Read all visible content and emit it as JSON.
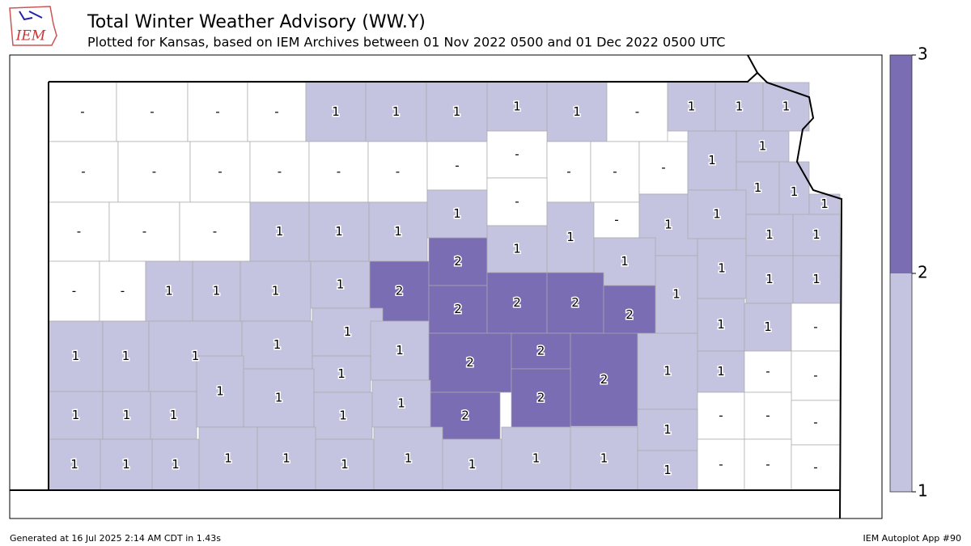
{
  "header": {
    "logo": "IEM",
    "title": "Total Winter Weather Advisory (WW.Y)",
    "subtitle": "Plotted for Kansas, based on IEM Archives  between 01 Nov 2022 0500 and 01 Dec 2022 0500 UTC"
  },
  "colorbar": {
    "levels": [
      1,
      2,
      3
    ],
    "colors": [
      "#c4c4e0",
      "#7b6db4"
    ],
    "empty_color": "#ffffff"
  },
  "counties": {
    "values": [
      "-",
      "-",
      "-",
      "-",
      1,
      1,
      1,
      1,
      1,
      "-",
      1,
      1,
      1,
      "-",
      "-",
      "-",
      "-",
      "-",
      "-",
      "-",
      "-",
      "-",
      "-",
      "-",
      1,
      1,
      1,
      1,
      1,
      "-",
      "-",
      "-",
      1,
      1,
      1,
      1,
      "-",
      1,
      "-",
      1,
      1,
      1,
      1,
      "-",
      "-",
      1,
      1,
      1,
      1,
      2,
      2,
      1,
      1,
      1,
      1,
      1,
      1,
      2,
      2,
      2,
      2,
      1,
      1,
      1,
      1,
      1,
      1,
      1,
      1,
      "-",
      2,
      2,
      2,
      1,
      1,
      "-",
      "-",
      1,
      1,
      1,
      2,
      1,
      1,
      1,
      1,
      1,
      2,
      "-",
      "-",
      "-",
      1,
      1,
      1,
      1,
      1,
      1,
      1,
      1,
      1,
      1,
      1,
      1,
      "-",
      "-",
      "-"
    ]
  },
  "footer": {
    "left": "Generated at 16 Jul 2025 2:14 AM CDT in 1.43s",
    "right": "IEM Autoplot App #90"
  }
}
